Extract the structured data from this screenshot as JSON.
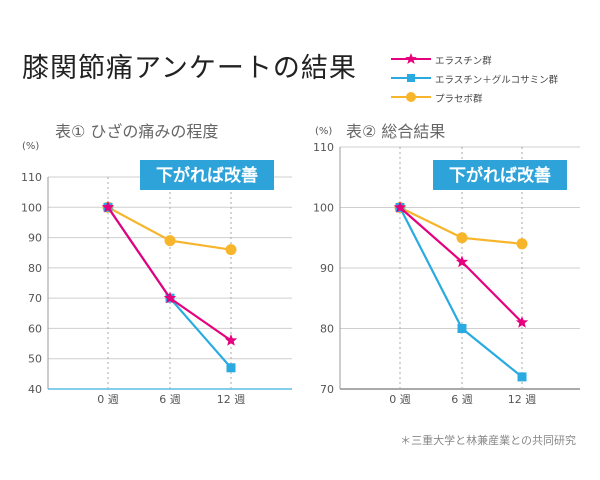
{
  "title": "膝関節痛アンケートの結果",
  "footnote": "＊三重大学と林兼産業との共同研究",
  "colors": {
    "magenta": "#e6007e",
    "blue": "#29abe2",
    "orange": "#f7b52c",
    "banner": "#2ea3d9"
  },
  "legend": [
    {
      "label": "エラスチン群",
      "color": "#e6007e",
      "marker": "star"
    },
    {
      "label": "エラスチン＋グルコサミン群",
      "color": "#29abe2",
      "marker": "square"
    },
    {
      "label": "プラセボ群",
      "color": "#f7b52c",
      "marker": "circle"
    }
  ],
  "chart_data": [
    {
      "type": "line",
      "title": "表① ひざの痛みの程度",
      "yunit": "(%)",
      "banner": "下がれば改善",
      "categories": [
        "0 週",
        "6 週",
        "12 週"
      ],
      "ylim": [
        40,
        110
      ],
      "yticks": [
        40,
        50,
        60,
        70,
        80,
        90,
        100,
        110
      ],
      "series": [
        {
          "name": "エラスチン群",
          "marker": "star",
          "color": "#e6007e",
          "values": [
            100,
            70,
            56
          ]
        },
        {
          "name": "エラスチン＋グルコサミン群",
          "marker": "square",
          "color": "#29abe2",
          "values": [
            100,
            70,
            47
          ]
        },
        {
          "name": "プラセボ群",
          "marker": "circle",
          "color": "#f7b52c",
          "values": [
            100,
            89,
            86
          ]
        }
      ]
    },
    {
      "type": "line",
      "title": "表② 総合結果",
      "yunit": "(%)",
      "banner": "下がれば改善",
      "categories": [
        "0 週",
        "6 週",
        "12 週"
      ],
      "ylim": [
        70,
        110
      ],
      "yticks": [
        70,
        80,
        90,
        100,
        110
      ],
      "series": [
        {
          "name": "エラスチン群",
          "marker": "star",
          "color": "#e6007e",
          "values": [
            100,
            91,
            81
          ]
        },
        {
          "name": "エラスチン＋グルコサミン群",
          "marker": "square",
          "color": "#29abe2",
          "values": [
            100,
            80,
            72
          ]
        },
        {
          "name": "プラセボ群",
          "marker": "circle",
          "color": "#f7b52c",
          "values": [
            100,
            95,
            94
          ]
        }
      ]
    }
  ]
}
